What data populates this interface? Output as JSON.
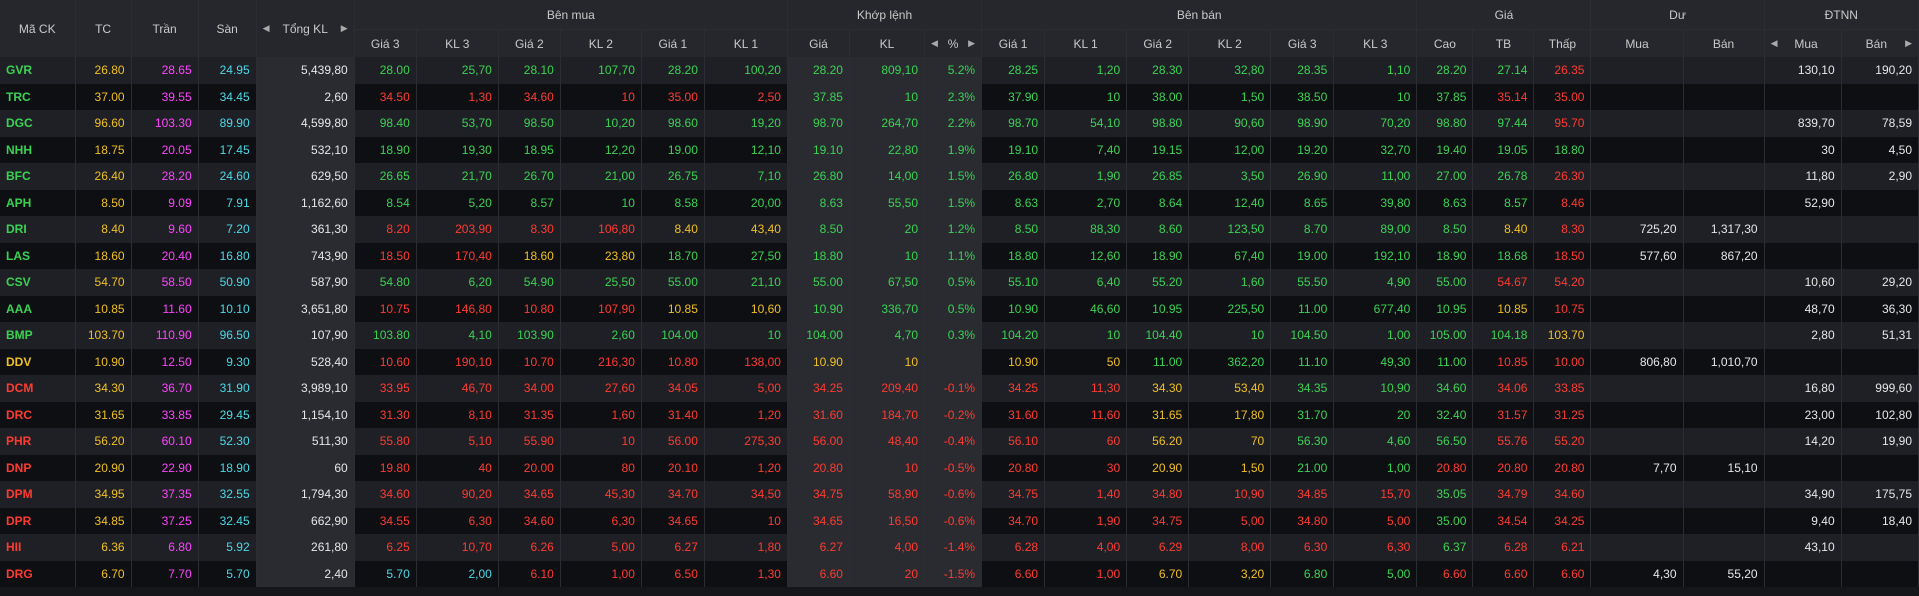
{
  "headers": {
    "symbol": "Mã CK",
    "ref": "TC",
    "ceil": "Trần",
    "floor": "Sàn",
    "total_vol": "Tổng KL",
    "buy_group": "Bên mua",
    "match_group": "Khớp lệnh",
    "sell_group": "Bên bán",
    "price_group": "Giá",
    "remain_group": "Dư",
    "foreign_group": "ĐTNN",
    "buy_cols": [
      "Giá 3",
      "KL 3",
      "Giá 2",
      "KL 2",
      "Giá 1",
      "KL 1"
    ],
    "match_cols": [
      "Giá",
      "KL",
      "%"
    ],
    "sell_cols": [
      "Giá 1",
      "KL 1",
      "Giá 2",
      "KL 2",
      "Giá 3",
      "KL 3"
    ],
    "price_cols": [
      "Cao",
      "TB",
      "Thấp"
    ],
    "remain_cols": [
      "Mua",
      "Bán"
    ],
    "foreign_cols": [
      "Mua",
      "Bán"
    ]
  },
  "colors": {
    "up": "#39d353",
    "down": "#ff3b30",
    "ref": "#f0c020",
    "ceil": "#ff44ff",
    "floor": "#4ad9e6"
  },
  "rows": [
    {
      "sym": "GVR",
      "c": "u",
      "v": [
        "26.80",
        "28.65",
        "24.95",
        "5,439,80",
        "28.00",
        "25,70",
        "28.10",
        "107,70",
        "28.20",
        "100,20",
        "28.20",
        "809,10",
        "5.2%",
        "28.25",
        "1,20",
        "28.30",
        "32,80",
        "28.35",
        "1,10",
        "28.20",
        "27.14",
        "26.35",
        "",
        "",
        "130,10",
        "190,20"
      ],
      "cc": [
        "r",
        "c",
        "f",
        "w",
        "u",
        "u",
        "u",
        "u",
        "u",
        "u",
        "u",
        "u",
        "u",
        "u",
        "u",
        "u",
        "u",
        "u",
        "u",
        "u",
        "u",
        "d",
        "w",
        "w",
        "w",
        "w"
      ]
    },
    {
      "sym": "TRC",
      "c": "u",
      "v": [
        "37.00",
        "39.55",
        "34.45",
        "2,60",
        "34.50",
        "1,30",
        "34.60",
        "10",
        "35.00",
        "2,50",
        "37.85",
        "10",
        "2.3%",
        "37.90",
        "10",
        "38.00",
        "1,50",
        "38.50",
        "10",
        "37.85",
        "35.14",
        "35.00",
        "",
        "",
        "",
        ""
      ],
      "cc": [
        "r",
        "c",
        "f",
        "w",
        "d",
        "d",
        "d",
        "d",
        "d",
        "d",
        "u",
        "u",
        "u",
        "u",
        "u",
        "u",
        "u",
        "u",
        "u",
        "u",
        "d",
        "d",
        "w",
        "w",
        "w",
        "w"
      ]
    },
    {
      "sym": "DGC",
      "c": "u",
      "v": [
        "96.60",
        "103.30",
        "89.90",
        "4,599,80",
        "98.40",
        "53,70",
        "98.50",
        "10,20",
        "98.60",
        "19,20",
        "98.70",
        "264,70",
        "2.2%",
        "98.70",
        "54,10",
        "98.80",
        "90,60",
        "98.90",
        "70,20",
        "98.80",
        "97.44",
        "95.70",
        "",
        "",
        "839,70",
        "78,59"
      ],
      "cc": [
        "r",
        "c",
        "f",
        "w",
        "u",
        "u",
        "u",
        "u",
        "u",
        "u",
        "u",
        "u",
        "u",
        "u",
        "u",
        "u",
        "u",
        "u",
        "u",
        "u",
        "u",
        "d",
        "w",
        "w",
        "w",
        "w"
      ]
    },
    {
      "sym": "NHH",
      "c": "u",
      "v": [
        "18.75",
        "20.05",
        "17.45",
        "532,10",
        "18.90",
        "19,30",
        "18.95",
        "12,20",
        "19.00",
        "12,10",
        "19.10",
        "22,80",
        "1.9%",
        "19.10",
        "7,40",
        "19.15",
        "12,00",
        "19.20",
        "32,70",
        "19.40",
        "19.05",
        "18.80",
        "",
        "",
        "30",
        "4,50"
      ],
      "cc": [
        "r",
        "c",
        "f",
        "w",
        "u",
        "u",
        "u",
        "u",
        "u",
        "u",
        "u",
        "u",
        "u",
        "u",
        "u",
        "u",
        "u",
        "u",
        "u",
        "u",
        "u",
        "u",
        "w",
        "w",
        "w",
        "w"
      ]
    },
    {
      "sym": "BFC",
      "c": "u",
      "v": [
        "26.40",
        "28.20",
        "24.60",
        "629,50",
        "26.65",
        "21,70",
        "26.70",
        "21,00",
        "26.75",
        "7,10",
        "26.80",
        "14,00",
        "1.5%",
        "26.80",
        "1,90",
        "26.85",
        "3,50",
        "26.90",
        "11,00",
        "27.00",
        "26.78",
        "26.30",
        "",
        "",
        "11,80",
        "2,90"
      ],
      "cc": [
        "r",
        "c",
        "f",
        "w",
        "u",
        "u",
        "u",
        "u",
        "u",
        "u",
        "u",
        "u",
        "u",
        "u",
        "u",
        "u",
        "u",
        "u",
        "u",
        "u",
        "u",
        "d",
        "w",
        "w",
        "w",
        "w"
      ]
    },
    {
      "sym": "APH",
      "c": "u",
      "v": [
        "8.50",
        "9.09",
        "7.91",
        "1,162,60",
        "8.54",
        "5,20",
        "8.57",
        "10",
        "8.58",
        "20,00",
        "8.63",
        "55,50",
        "1.5%",
        "8.63",
        "2,70",
        "8.64",
        "12,40",
        "8.65",
        "39,80",
        "8.63",
        "8.57",
        "8.46",
        "",
        "",
        "52,90",
        ""
      ],
      "cc": [
        "r",
        "c",
        "f",
        "w",
        "u",
        "u",
        "u",
        "u",
        "u",
        "u",
        "u",
        "u",
        "u",
        "u",
        "u",
        "u",
        "u",
        "u",
        "u",
        "u",
        "u",
        "d",
        "w",
        "w",
        "w",
        "w"
      ]
    },
    {
      "sym": "DRI",
      "c": "u",
      "v": [
        "8.40",
        "9.60",
        "7.20",
        "361,30",
        "8.20",
        "203,90",
        "8.30",
        "106,80",
        "8.40",
        "43,40",
        "8.50",
        "20",
        "1.2%",
        "8.50",
        "88,30",
        "8.60",
        "123,50",
        "8.70",
        "89,00",
        "8.50",
        "8.40",
        "8.30",
        "725,20",
        "1,317,30",
        "",
        ""
      ],
      "cc": [
        "r",
        "c",
        "f",
        "w",
        "d",
        "d",
        "d",
        "d",
        "r",
        "r",
        "u",
        "u",
        "u",
        "u",
        "u",
        "u",
        "u",
        "u",
        "u",
        "u",
        "r",
        "d",
        "w",
        "w",
        "w",
        "w"
      ]
    },
    {
      "sym": "LAS",
      "c": "u",
      "v": [
        "18.60",
        "20.40",
        "16.80",
        "743,90",
        "18.50",
        "170,40",
        "18.60",
        "23,80",
        "18.70",
        "27,50",
        "18.80",
        "10",
        "1.1%",
        "18.80",
        "12,60",
        "18.90",
        "67,40",
        "19.00",
        "192,10",
        "18.90",
        "18.68",
        "18.50",
        "577,60",
        "867,20",
        "",
        ""
      ],
      "cc": [
        "r",
        "c",
        "f",
        "w",
        "d",
        "d",
        "r",
        "r",
        "u",
        "u",
        "u",
        "u",
        "u",
        "u",
        "u",
        "u",
        "u",
        "u",
        "u",
        "u",
        "u",
        "d",
        "w",
        "w",
        "w",
        "w"
      ]
    },
    {
      "sym": "CSV",
      "c": "u",
      "v": [
        "54.70",
        "58.50",
        "50.90",
        "587,90",
        "54.80",
        "6,20",
        "54.90",
        "25,50",
        "55.00",
        "21,10",
        "55.00",
        "67,50",
        "0.5%",
        "55.10",
        "6,40",
        "55.20",
        "1,60",
        "55.50",
        "4,90",
        "55.00",
        "54.67",
        "54.20",
        "",
        "",
        "10,60",
        "29,20"
      ],
      "cc": [
        "r",
        "c",
        "f",
        "w",
        "u",
        "u",
        "u",
        "u",
        "u",
        "u",
        "u",
        "u",
        "u",
        "u",
        "u",
        "u",
        "u",
        "u",
        "u",
        "u",
        "d",
        "d",
        "w",
        "w",
        "w",
        "w"
      ]
    },
    {
      "sym": "AAA",
      "c": "u",
      "v": [
        "10.85",
        "11.60",
        "10.10",
        "3,651,80",
        "10.75",
        "146,80",
        "10.80",
        "107,90",
        "10.85",
        "10,60",
        "10.90",
        "336,70",
        "0.5%",
        "10.90",
        "46,60",
        "10.95",
        "225,50",
        "11.00",
        "677,40",
        "10.95",
        "10.85",
        "10.75",
        "",
        "",
        "48,70",
        "36,30"
      ],
      "cc": [
        "r",
        "c",
        "f",
        "w",
        "d",
        "d",
        "d",
        "d",
        "r",
        "r",
        "u",
        "u",
        "u",
        "u",
        "u",
        "u",
        "u",
        "u",
        "u",
        "u",
        "r",
        "d",
        "w",
        "w",
        "w",
        "w"
      ]
    },
    {
      "sym": "BMP",
      "c": "u",
      "v": [
        "103.70",
        "110.90",
        "96.50",
        "107,90",
        "103.80",
        "4,10",
        "103.90",
        "2,60",
        "104.00",
        "10",
        "104.00",
        "4,70",
        "0.3%",
        "104.20",
        "10",
        "104.40",
        "10",
        "104.50",
        "1,00",
        "105.00",
        "104.18",
        "103.70",
        "",
        "",
        "2,80",
        "51,31"
      ],
      "cc": [
        "r",
        "c",
        "f",
        "w",
        "u",
        "u",
        "u",
        "u",
        "u",
        "u",
        "u",
        "u",
        "u",
        "u",
        "u",
        "u",
        "u",
        "u",
        "u",
        "u",
        "u",
        "r",
        "w",
        "w",
        "w",
        "w"
      ]
    },
    {
      "sym": "DDV",
      "c": "r",
      "v": [
        "10.90",
        "12.50",
        "9.30",
        "528,40",
        "10.60",
        "190,10",
        "10.70",
        "216,30",
        "10.80",
        "138,00",
        "10.90",
        "10",
        "",
        "10.90",
        "50",
        "11.00",
        "362,20",
        "11.10",
        "49,30",
        "11.00",
        "10.85",
        "10.00",
        "806,80",
        "1,010,70",
        "",
        ""
      ],
      "cc": [
        "r",
        "c",
        "f",
        "w",
        "d",
        "d",
        "d",
        "d",
        "d",
        "d",
        "r",
        "r",
        "w",
        "r",
        "r",
        "u",
        "u",
        "u",
        "u",
        "u",
        "d",
        "d",
        "w",
        "w",
        "w",
        "w"
      ]
    },
    {
      "sym": "DCM",
      "c": "d",
      "v": [
        "34.30",
        "36.70",
        "31.90",
        "3,989,10",
        "33.95",
        "46,70",
        "34.00",
        "27,60",
        "34.05",
        "5,00",
        "34.25",
        "209,40",
        "-0.1%",
        "34.25",
        "11,30",
        "34.30",
        "53,40",
        "34.35",
        "10,90",
        "34.60",
        "34.06",
        "33.85",
        "",
        "",
        "16,80",
        "999,60"
      ],
      "cc": [
        "r",
        "c",
        "f",
        "w",
        "d",
        "d",
        "d",
        "d",
        "d",
        "d",
        "d",
        "d",
        "d",
        "d",
        "d",
        "r",
        "r",
        "u",
        "u",
        "u",
        "d",
        "d",
        "w",
        "w",
        "w",
        "w"
      ]
    },
    {
      "sym": "DRC",
      "c": "d",
      "v": [
        "31.65",
        "33.85",
        "29.45",
        "1,154,10",
        "31.30",
        "8,10",
        "31.35",
        "1,60",
        "31.40",
        "1,20",
        "31.60",
        "184,70",
        "-0.2%",
        "31.60",
        "11,60",
        "31.65",
        "17,80",
        "31.70",
        "20",
        "32.40",
        "31.57",
        "31.25",
        "",
        "",
        "23,00",
        "102,80"
      ],
      "cc": [
        "r",
        "c",
        "f",
        "w",
        "d",
        "d",
        "d",
        "d",
        "d",
        "d",
        "d",
        "d",
        "d",
        "d",
        "d",
        "r",
        "r",
        "u",
        "u",
        "u",
        "d",
        "d",
        "w",
        "w",
        "w",
        "w"
      ]
    },
    {
      "sym": "PHR",
      "c": "d",
      "v": [
        "56.20",
        "60.10",
        "52.30",
        "511,30",
        "55.80",
        "5,10",
        "55.90",
        "10",
        "56.00",
        "275,30",
        "56.00",
        "48,40",
        "-0.4%",
        "56.10",
        "60",
        "56.20",
        "70",
        "56.30",
        "4,60",
        "56.50",
        "55.76",
        "55.20",
        "",
        "",
        "14,20",
        "19,90"
      ],
      "cc": [
        "r",
        "c",
        "f",
        "w",
        "d",
        "d",
        "d",
        "d",
        "d",
        "d",
        "d",
        "d",
        "d",
        "d",
        "d",
        "r",
        "r",
        "u",
        "u",
        "u",
        "d",
        "d",
        "w",
        "w",
        "w",
        "w"
      ]
    },
    {
      "sym": "DNP",
      "c": "d",
      "v": [
        "20.90",
        "22.90",
        "18.90",
        "60",
        "19.80",
        "40",
        "20.00",
        "80",
        "20.10",
        "1,20",
        "20.80",
        "10",
        "-0.5%",
        "20.80",
        "30",
        "20.90",
        "1,50",
        "21.00",
        "1,00",
        "20.80",
        "20.80",
        "20.80",
        "7,70",
        "15,10",
        "",
        ""
      ],
      "cc": [
        "r",
        "c",
        "f",
        "w",
        "d",
        "d",
        "d",
        "d",
        "d",
        "d",
        "d",
        "d",
        "d",
        "d",
        "d",
        "r",
        "r",
        "u",
        "u",
        "d",
        "d",
        "d",
        "w",
        "w",
        "w",
        "w"
      ]
    },
    {
      "sym": "DPM",
      "c": "d",
      "v": [
        "34.95",
        "37.35",
        "32.55",
        "1,794,30",
        "34.60",
        "90,20",
        "34.65",
        "45,30",
        "34.70",
        "34,50",
        "34.75",
        "58,90",
        "-0.6%",
        "34.75",
        "1,40",
        "34.80",
        "10,90",
        "34.85",
        "15,70",
        "35.05",
        "34.79",
        "34.60",
        "",
        "",
        "34,90",
        "175,75"
      ],
      "cc": [
        "r",
        "c",
        "f",
        "w",
        "d",
        "d",
        "d",
        "d",
        "d",
        "d",
        "d",
        "d",
        "d",
        "d",
        "d",
        "d",
        "d",
        "d",
        "d",
        "u",
        "d",
        "d",
        "w",
        "w",
        "w",
        "w"
      ]
    },
    {
      "sym": "DPR",
      "c": "d",
      "v": [
        "34.85",
        "37.25",
        "32.45",
        "662,90",
        "34.55",
        "6,30",
        "34.60",
        "6,30",
        "34.65",
        "10",
        "34.65",
        "16,50",
        "-0.6%",
        "34.70",
        "1,90",
        "34.75",
        "5,00",
        "34.80",
        "5,00",
        "35.00",
        "34.54",
        "34.25",
        "",
        "",
        "9,40",
        "18,40"
      ],
      "cc": [
        "r",
        "c",
        "f",
        "w",
        "d",
        "d",
        "d",
        "d",
        "d",
        "d",
        "d",
        "d",
        "d",
        "d",
        "d",
        "d",
        "d",
        "d",
        "d",
        "u",
        "d",
        "d",
        "w",
        "w",
        "w",
        "w"
      ]
    },
    {
      "sym": "HII",
      "c": "d",
      "v": [
        "6.36",
        "6.80",
        "5.92",
        "261,80",
        "6.25",
        "10,70",
        "6.26",
        "5,00",
        "6.27",
        "1,80",
        "6.27",
        "4,00",
        "-1.4%",
        "6.28",
        "4,00",
        "6.29",
        "8,00",
        "6.30",
        "6,30",
        "6.37",
        "6.28",
        "6.21",
        "",
        "",
        "43,10",
        ""
      ],
      "cc": [
        "r",
        "c",
        "f",
        "w",
        "d",
        "d",
        "d",
        "d",
        "d",
        "d",
        "d",
        "d",
        "d",
        "d",
        "d",
        "d",
        "d",
        "d",
        "d",
        "u",
        "d",
        "d",
        "w",
        "w",
        "w",
        "w"
      ]
    },
    {
      "sym": "DRG",
      "c": "d",
      "v": [
        "6.70",
        "7.70",
        "5.70",
        "2,40",
        "5.70",
        "2,00",
        "6.10",
        "1,00",
        "6.50",
        "1,30",
        "6.60",
        "20",
        "-1.5%",
        "6.60",
        "1,00",
        "6.70",
        "3,20",
        "6.80",
        "5,00",
        "6.60",
        "6.60",
        "6.60",
        "4,30",
        "55,20",
        "",
        ""
      ],
      "cc": [
        "r",
        "c",
        "f",
        "w",
        "f",
        "f",
        "d",
        "d",
        "d",
        "d",
        "d",
        "d",
        "d",
        "d",
        "d",
        "r",
        "r",
        "u",
        "u",
        "d",
        "d",
        "d",
        "w",
        "w",
        "w",
        "w"
      ]
    }
  ]
}
